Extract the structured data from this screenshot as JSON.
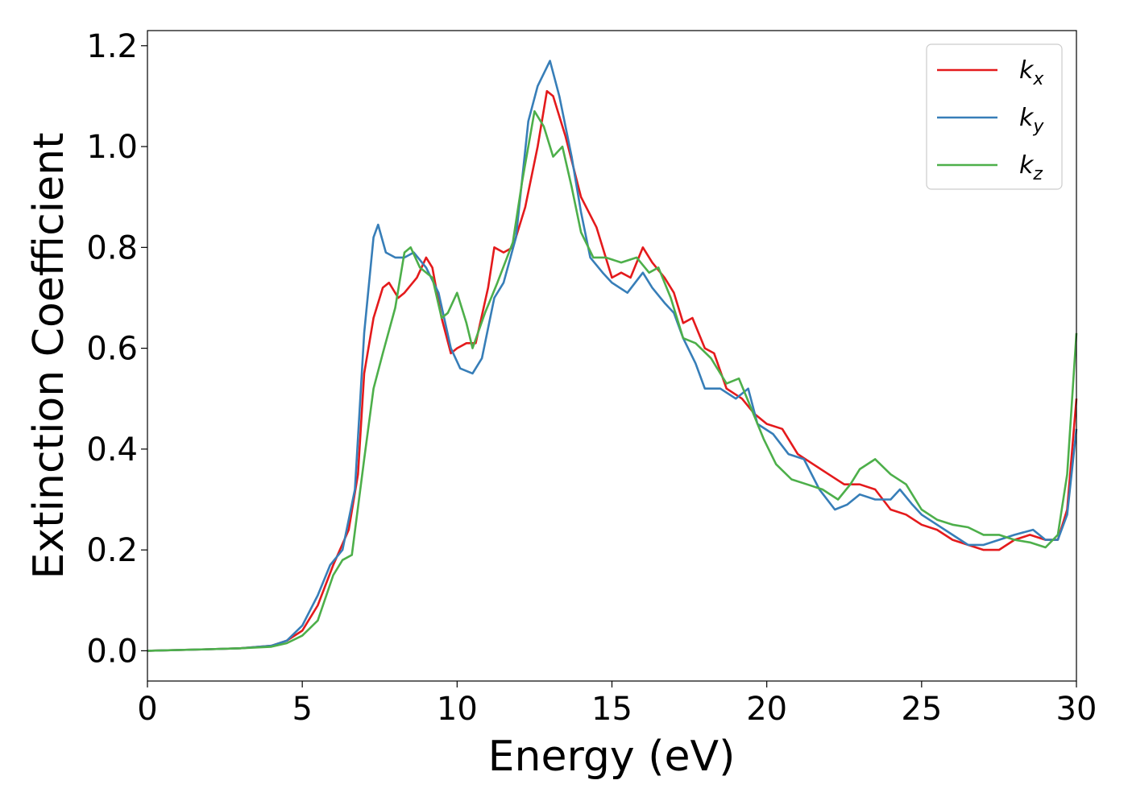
{
  "chart_data": {
    "type": "line",
    "xlabel": "Energy (eV)",
    "ylabel": "Extinction Coefficient",
    "xlim": [
      0,
      30
    ],
    "ylim": [
      -0.06,
      1.23
    ],
    "xticks": [
      "0",
      "5",
      "10",
      "15",
      "20",
      "25",
      "30"
    ],
    "yticks": [
      "0.0",
      "0.2",
      "0.4",
      "0.6",
      "0.8",
      "1.0",
      "1.2"
    ],
    "grid": false,
    "legend_position": "top-right",
    "series": [
      {
        "name": "k_x",
        "label_main": "k",
        "label_sub": "x",
        "color": "#e41a1c",
        "points": [
          [
            0,
            0
          ],
          [
            2,
            0.003
          ],
          [
            3,
            0.005
          ],
          [
            4,
            0.01
          ],
          [
            4.5,
            0.02
          ],
          [
            5,
            0.04
          ],
          [
            5.5,
            0.09
          ],
          [
            6,
            0.17
          ],
          [
            6.5,
            0.24
          ],
          [
            6.8,
            0.35
          ],
          [
            7,
            0.55
          ],
          [
            7.3,
            0.66
          ],
          [
            7.6,
            0.72
          ],
          [
            7.8,
            0.73
          ],
          [
            8.1,
            0.7
          ],
          [
            8.3,
            0.71
          ],
          [
            8.7,
            0.74
          ],
          [
            9,
            0.78
          ],
          [
            9.2,
            0.76
          ],
          [
            9.5,
            0.66
          ],
          [
            9.8,
            0.59
          ],
          [
            10,
            0.6
          ],
          [
            10.3,
            0.61
          ],
          [
            10.6,
            0.61
          ],
          [
            11,
            0.72
          ],
          [
            11.2,
            0.8
          ],
          [
            11.5,
            0.79
          ],
          [
            11.8,
            0.8
          ],
          [
            12.2,
            0.88
          ],
          [
            12.6,
            1.0
          ],
          [
            12.9,
            1.11
          ],
          [
            13.1,
            1.1
          ],
          [
            13.5,
            1.02
          ],
          [
            14,
            0.9
          ],
          [
            14.5,
            0.84
          ],
          [
            15,
            0.74
          ],
          [
            15.3,
            0.75
          ],
          [
            15.6,
            0.74
          ],
          [
            16,
            0.8
          ],
          [
            16.3,
            0.77
          ],
          [
            16.7,
            0.74
          ],
          [
            17,
            0.71
          ],
          [
            17.3,
            0.65
          ],
          [
            17.6,
            0.66
          ],
          [
            18,
            0.6
          ],
          [
            18.3,
            0.59
          ],
          [
            18.7,
            0.52
          ],
          [
            19.2,
            0.5
          ],
          [
            19.6,
            0.47
          ],
          [
            20,
            0.45
          ],
          [
            20.5,
            0.44
          ],
          [
            21,
            0.39
          ],
          [
            21.5,
            0.37
          ],
          [
            22,
            0.35
          ],
          [
            22.5,
            0.33
          ],
          [
            23,
            0.33
          ],
          [
            23.5,
            0.32
          ],
          [
            24,
            0.28
          ],
          [
            24.5,
            0.27
          ],
          [
            25,
            0.25
          ],
          [
            25.5,
            0.24
          ],
          [
            26,
            0.22
          ],
          [
            26.5,
            0.21
          ],
          [
            27,
            0.2
          ],
          [
            27.5,
            0.2
          ],
          [
            28,
            0.22
          ],
          [
            28.5,
            0.23
          ],
          [
            29,
            0.22
          ],
          [
            29.4,
            0.22
          ],
          [
            29.7,
            0.28
          ],
          [
            30,
            0.5
          ]
        ]
      },
      {
        "name": "k_y",
        "label_main": "k",
        "label_sub": "y",
        "color": "#377eb8",
        "points": [
          [
            0,
            0
          ],
          [
            2,
            0.003
          ],
          [
            3,
            0.005
          ],
          [
            4,
            0.01
          ],
          [
            4.5,
            0.02
          ],
          [
            5,
            0.05
          ],
          [
            5.5,
            0.11
          ],
          [
            5.9,
            0.17
          ],
          [
            6.3,
            0.2
          ],
          [
            6.7,
            0.32
          ],
          [
            7,
            0.63
          ],
          [
            7.3,
            0.82
          ],
          [
            7.45,
            0.845
          ],
          [
            7.7,
            0.79
          ],
          [
            8,
            0.78
          ],
          [
            8.3,
            0.78
          ],
          [
            8.6,
            0.79
          ],
          [
            9,
            0.76
          ],
          [
            9.4,
            0.71
          ],
          [
            9.8,
            0.6
          ],
          [
            10.1,
            0.56
          ],
          [
            10.5,
            0.55
          ],
          [
            10.8,
            0.58
          ],
          [
            11.2,
            0.7
          ],
          [
            11.5,
            0.73
          ],
          [
            11.9,
            0.82
          ],
          [
            12.3,
            1.05
          ],
          [
            12.6,
            1.12
          ],
          [
            13,
            1.17
          ],
          [
            13.3,
            1.1
          ],
          [
            13.7,
            0.98
          ],
          [
            14,
            0.87
          ],
          [
            14.3,
            0.78
          ],
          [
            14.7,
            0.75
          ],
          [
            15,
            0.73
          ],
          [
            15.5,
            0.71
          ],
          [
            16,
            0.75
          ],
          [
            16.3,
            0.72
          ],
          [
            16.7,
            0.69
          ],
          [
            17,
            0.67
          ],
          [
            17.3,
            0.62
          ],
          [
            17.7,
            0.57
          ],
          [
            18,
            0.52
          ],
          [
            18.5,
            0.52
          ],
          [
            19,
            0.5
          ],
          [
            19.4,
            0.52
          ],
          [
            19.7,
            0.45
          ],
          [
            20.2,
            0.43
          ],
          [
            20.7,
            0.39
          ],
          [
            21.2,
            0.38
          ],
          [
            21.7,
            0.32
          ],
          [
            22.2,
            0.28
          ],
          [
            22.6,
            0.29
          ],
          [
            23,
            0.31
          ],
          [
            23.5,
            0.3
          ],
          [
            24,
            0.3
          ],
          [
            24.3,
            0.32
          ],
          [
            24.7,
            0.29
          ],
          [
            25,
            0.27
          ],
          [
            25.5,
            0.25
          ],
          [
            26,
            0.23
          ],
          [
            26.5,
            0.21
          ],
          [
            27,
            0.21
          ],
          [
            27.5,
            0.22
          ],
          [
            28,
            0.23
          ],
          [
            28.6,
            0.24
          ],
          [
            29,
            0.22
          ],
          [
            29.4,
            0.22
          ],
          [
            29.7,
            0.27
          ],
          [
            30,
            0.44
          ]
        ]
      },
      {
        "name": "k_z",
        "label_main": "k",
        "label_sub": "z",
        "color": "#4daf4a",
        "points": [
          [
            0,
            0
          ],
          [
            2,
            0.003
          ],
          [
            3,
            0.005
          ],
          [
            4,
            0.008
          ],
          [
            4.5,
            0.015
          ],
          [
            5,
            0.03
          ],
          [
            5.5,
            0.06
          ],
          [
            6,
            0.15
          ],
          [
            6.3,
            0.18
          ],
          [
            6.6,
            0.19
          ],
          [
            7,
            0.38
          ],
          [
            7.3,
            0.52
          ],
          [
            7.6,
            0.59
          ],
          [
            8,
            0.68
          ],
          [
            8.3,
            0.79
          ],
          [
            8.5,
            0.8
          ],
          [
            8.8,
            0.76
          ],
          [
            9.2,
            0.74
          ],
          [
            9.5,
            0.66
          ],
          [
            9.7,
            0.67
          ],
          [
            10,
            0.71
          ],
          [
            10.3,
            0.65
          ],
          [
            10.5,
            0.6
          ],
          [
            10.9,
            0.67
          ],
          [
            11.3,
            0.73
          ],
          [
            11.8,
            0.81
          ],
          [
            12.1,
            0.93
          ],
          [
            12.5,
            1.07
          ],
          [
            12.8,
            1.04
          ],
          [
            13.1,
            0.98
          ],
          [
            13.4,
            1.0
          ],
          [
            13.7,
            0.92
          ],
          [
            14,
            0.83
          ],
          [
            14.4,
            0.78
          ],
          [
            14.8,
            0.78
          ],
          [
            15.3,
            0.77
          ],
          [
            15.8,
            0.78
          ],
          [
            16.2,
            0.75
          ],
          [
            16.5,
            0.76
          ],
          [
            16.9,
            0.7
          ],
          [
            17.3,
            0.62
          ],
          [
            17.7,
            0.61
          ],
          [
            18.2,
            0.58
          ],
          [
            18.7,
            0.53
          ],
          [
            19.1,
            0.54
          ],
          [
            19.5,
            0.48
          ],
          [
            19.9,
            0.42
          ],
          [
            20.3,
            0.37
          ],
          [
            20.8,
            0.34
          ],
          [
            21.3,
            0.33
          ],
          [
            21.8,
            0.32
          ],
          [
            22.3,
            0.3
          ],
          [
            22.7,
            0.33
          ],
          [
            23,
            0.36
          ],
          [
            23.5,
            0.38
          ],
          [
            24,
            0.35
          ],
          [
            24.5,
            0.33
          ],
          [
            25,
            0.28
          ],
          [
            25.5,
            0.26
          ],
          [
            26,
            0.25
          ],
          [
            26.5,
            0.245
          ],
          [
            27,
            0.23
          ],
          [
            27.5,
            0.23
          ],
          [
            28,
            0.22
          ],
          [
            28.5,
            0.215
          ],
          [
            29,
            0.205
          ],
          [
            29.4,
            0.23
          ],
          [
            29.7,
            0.35
          ],
          [
            30,
            0.63
          ]
        ]
      }
    ]
  }
}
